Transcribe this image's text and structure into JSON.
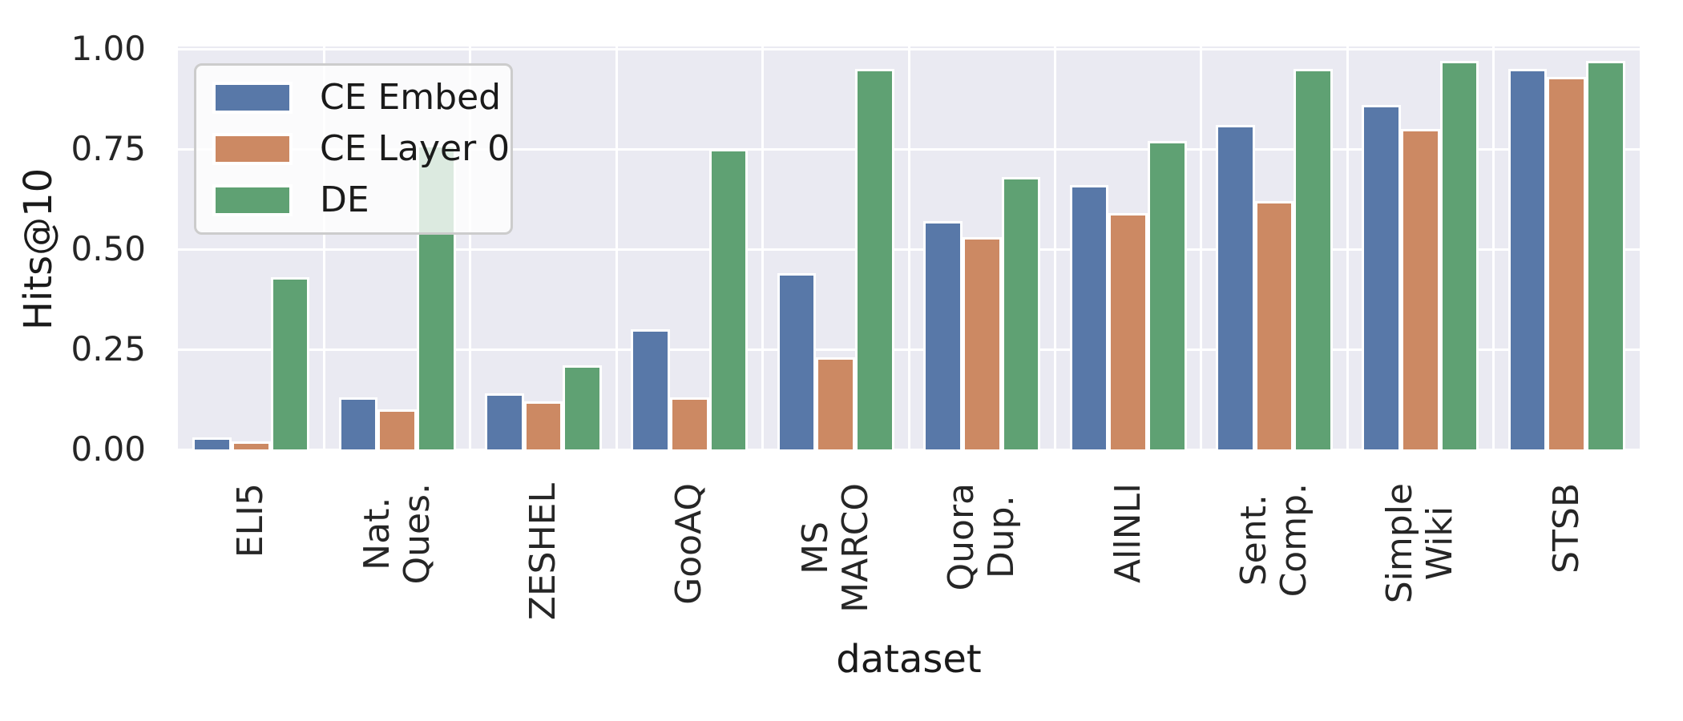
{
  "chart_data": {
    "type": "bar",
    "title": "",
    "xlabel": "dataset",
    "ylabel": "Hits@10",
    "categories": [
      "ELI5",
      "Nat. Ques.",
      "ZESHEL",
      "GooAQ",
      "MS MARCO",
      "Quora Dup.",
      "AllNLI",
      "Sent. Comp.",
      "Simple Wiki",
      "STSB"
    ],
    "category_tick_lines": [
      [
        "ELI5"
      ],
      [
        "Nat.",
        "Ques."
      ],
      [
        "ZESHEL"
      ],
      [
        "GooAQ"
      ],
      [
        "MS",
        "MARCO"
      ],
      [
        "Quora",
        "Dup."
      ],
      [
        "AllNLI"
      ],
      [
        "Sent.",
        "Comp."
      ],
      [
        "Simple",
        "Wiki"
      ],
      [
        "STSB"
      ]
    ],
    "series": [
      {
        "name": "CE Embed",
        "color": "#5878a8",
        "values": [
          0.03,
          0.13,
          0.14,
          0.3,
          0.44,
          0.57,
          0.66,
          0.81,
          0.86,
          0.95
        ]
      },
      {
        "name": "CE Layer 0",
        "color": "#cc8963",
        "values": [
          0.02,
          0.1,
          0.12,
          0.13,
          0.23,
          0.53,
          0.59,
          0.62,
          0.8,
          0.93
        ]
      },
      {
        "name": "DE",
        "color": "#5fa173",
        "values": [
          0.43,
          0.76,
          0.21,
          0.75,
          0.95,
          0.68,
          0.77,
          0.95,
          0.97,
          0.97
        ]
      }
    ],
    "yticks": [
      "0.00",
      "0.25",
      "0.50",
      "0.75",
      "1.00"
    ],
    "ytick_values": [
      0.0,
      0.25,
      0.5,
      0.75,
      1.0
    ],
    "ylim": [
      0.0,
      1.006
    ],
    "grid": true,
    "legend_position": "upper left",
    "plot_background": "#eaeaf2",
    "grid_color": "#ffffff"
  }
}
